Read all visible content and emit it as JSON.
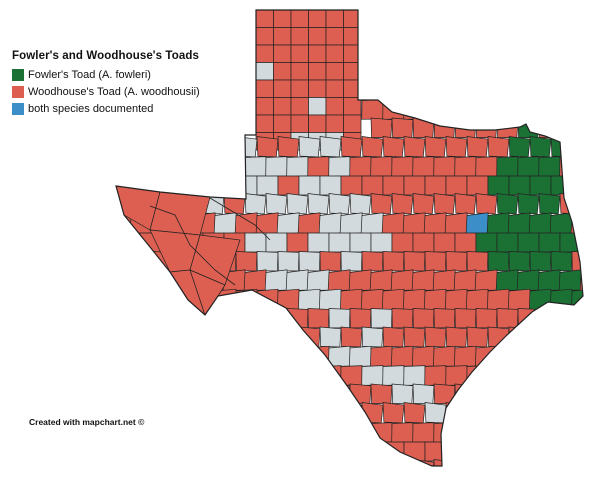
{
  "legend": {
    "title": "Fowler's and Woodhouse's Toads",
    "items": [
      {
        "label": "Fowler's Toad (A. fowleri)",
        "color": "#1b7134"
      },
      {
        "label": "Woodhouse's Toad (A. woodhousii)",
        "color": "#dd5f51"
      },
      {
        "label": "both species documented",
        "color": "#3b8ec7"
      }
    ]
  },
  "colors": {
    "no_record": "#d3dadd",
    "county_border": "#222222",
    "fowleri": "#1b7134",
    "woodhousii": "#dd5f51",
    "both": "#3b8ec7"
  },
  "credit": "Created with mapchart.net ©"
}
